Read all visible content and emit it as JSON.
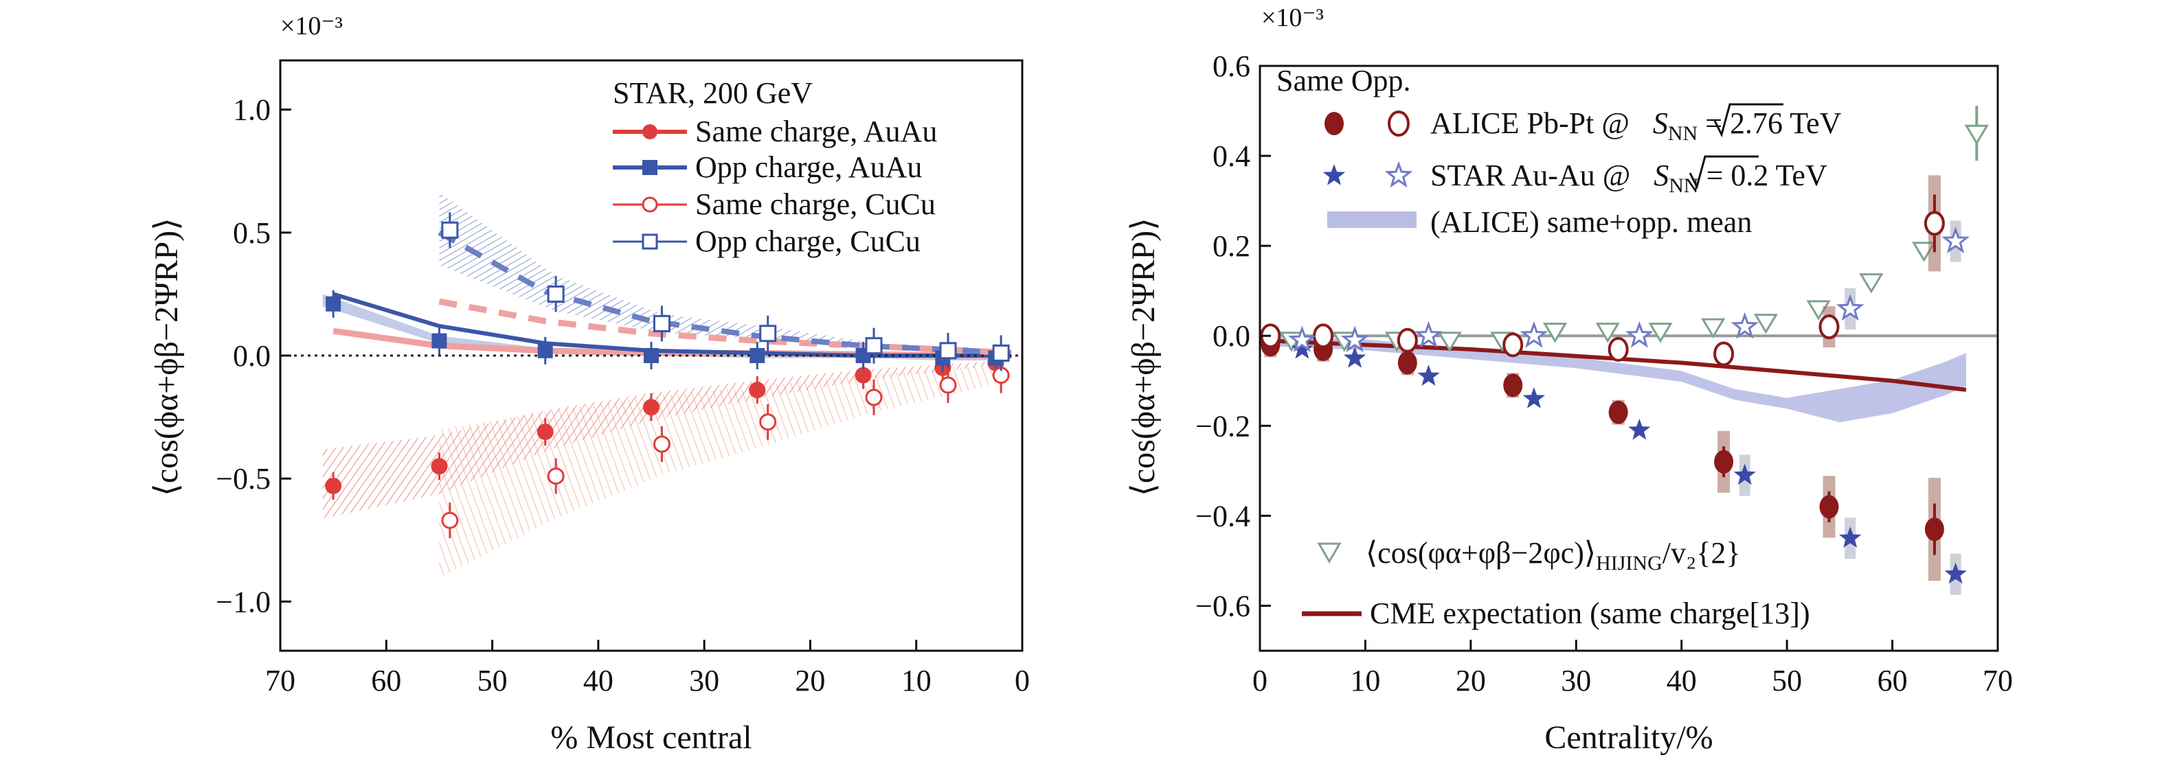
{
  "chart_data": [
    {
      "type": "scatter",
      "multiplier": "×10⁻³",
      "xlabel": "% Most central",
      "ylabel": "⟨cos(ϕα+ϕβ−2ΨRP)⟩",
      "xlim": [
        70,
        0
      ],
      "ylim": [
        -1.2,
        1.2
      ],
      "xticks": [
        70,
        60,
        50,
        40,
        30,
        20,
        10,
        0
      ],
      "yticks": [
        1.0,
        0.5,
        0.0,
        -0.5,
        -1.0
      ],
      "ytick_labels": [
        "1.0",
        "0.5",
        "0.0",
        "−0.5",
        "−1.0"
      ],
      "zero_line": "dotted",
      "legend_title": "STAR, 200 GeV",
      "legend_position": "top-right",
      "series": [
        {
          "name": "Same charge, AuAu",
          "color": "#e03c3c",
          "marker": "filled-circle",
          "line": "solid",
          "x": [
            65,
            55,
            45,
            35,
            25,
            15,
            7.5,
            2.5
          ],
          "y": [
            -0.53,
            -0.45,
            -0.31,
            -0.21,
            -0.14,
            -0.08,
            -0.05,
            -0.03
          ]
        },
        {
          "name": "Opp charge, AuAu",
          "color": "#3a56a8",
          "marker": "filled-square",
          "line": "solid",
          "x": [
            65,
            55,
            45,
            35,
            25,
            15,
            7.5,
            2.5
          ],
          "y": [
            0.21,
            0.06,
            0.02,
            0.0,
            0.0,
            0.0,
            -0.01,
            -0.01
          ]
        },
        {
          "name": "Same charge, CuCu",
          "color": "#e03c3c",
          "marker": "open-circle",
          "line": "dashed",
          "x": [
            54,
            44,
            34,
            24,
            14,
            7,
            2
          ],
          "y": [
            -0.67,
            -0.49,
            -0.36,
            -0.27,
            -0.17,
            -0.12,
            -0.08
          ]
        },
        {
          "name": "Opp charge, CuCu",
          "color": "#3a56a8",
          "marker": "open-square",
          "line": "dashed",
          "x": [
            54,
            44,
            34,
            24,
            14,
            7,
            2
          ],
          "y": [
            0.51,
            0.25,
            0.13,
            0.09,
            0.04,
            0.02,
            0.01
          ]
        }
      ]
    },
    {
      "type": "scatter",
      "multiplier": "×10⁻³",
      "xlabel": "Centrality/%",
      "ylabel": "⟨cos(ϕα+ϕβ−2ΨRP)⟩",
      "xlim": [
        0,
        70
      ],
      "ylim": [
        -0.7,
        0.6
      ],
      "xticks": [
        0,
        10,
        20,
        30,
        40,
        50,
        60,
        70
      ],
      "yticks": [
        0.6,
        0.4,
        0.2,
        0.0,
        -0.2,
        -0.4,
        -0.6
      ],
      "ytick_labels": [
        "0.6",
        "0.4",
        "0.2",
        "0.0",
        "−0.2",
        "−0.4",
        "−0.6"
      ],
      "zero_line": "solid",
      "legend_header": "Same Opp.",
      "legend_position": "top-left",
      "series": [
        {
          "name": "ALICE Pb-Pt @√SNN = 2.76 TeV",
          "legend": "ALICE Pb-Pt @",
          "legend_sqrt": "S",
          "legend_sub": "NN",
          "legend_tail": " = 2.76 TeV",
          "color": "#8b1a1a",
          "marker": "filled-circle",
          "charge": "same",
          "x": [
            1,
            6,
            14,
            24,
            34,
            44,
            54,
            64
          ],
          "y": [
            -0.02,
            -0.03,
            -0.06,
            -0.11,
            -0.17,
            -0.28,
            -0.38,
            -0.43
          ]
        },
        {
          "name": "ALICE Pb-Pt opposite",
          "color": "#8b1a1a",
          "marker": "open-circle",
          "charge": "opp",
          "x": [
            1,
            6,
            14,
            24,
            34,
            44,
            54,
            64
          ],
          "y": [
            0.0,
            0.0,
            -0.01,
            -0.02,
            -0.03,
            -0.04,
            0.02,
            0.25
          ]
        },
        {
          "name": "STAR Au-Au @√SNN = 0.2 TeV",
          "legend": "STAR Au-Au @",
          "legend_sqrt": "S",
          "legend_sub": "NN",
          "legend_tail": " = 0.2 TeV",
          "color": "#3b4aa8",
          "marker": "filled-star",
          "charge": "same",
          "x": [
            4,
            9,
            16,
            26,
            36,
            46,
            56,
            66
          ],
          "y": [
            -0.03,
            -0.05,
            -0.09,
            -0.14,
            -0.21,
            -0.31,
            -0.45,
            -0.53
          ]
        },
        {
          "name": "STAR Au-Au opposite",
          "color": "#6f7bc4",
          "marker": "open-star",
          "charge": "opp",
          "x": [
            4,
            9,
            16,
            26,
            36,
            46,
            56,
            66
          ],
          "y": [
            -0.01,
            -0.01,
            0.0,
            0.0,
            0.0,
            0.02,
            0.06,
            0.21
          ]
        },
        {
          "name": "(ALICE) same+opp. mean",
          "legend": "(ALICE) same+opp. mean",
          "color": "#b9bde6",
          "marker": "band",
          "x": [
            0,
            10,
            20,
            30,
            40,
            45,
            50,
            55,
            60,
            65,
            67
          ],
          "y": [
            -0.01,
            -0.02,
            -0.04,
            -0.06,
            -0.09,
            -0.13,
            -0.15,
            -0.16,
            -0.14,
            -0.1,
            -0.08
          ]
        },
        {
          "name": "⟨cos(φα+φβ−2φc)⟩HIJING/v2{2}",
          "legend_main": "⟨cos(φα+φβ−2φc)⟩",
          "legend_sub": "HIJING",
          "legend_tail": "/v₂{2}",
          "color": "#7fa38c",
          "marker": "open-triangle-down",
          "x": [
            3,
            8,
            13,
            18,
            23,
            28,
            33,
            38,
            43,
            48,
            53,
            58,
            63,
            68
          ],
          "y": [
            -0.01,
            -0.01,
            -0.01,
            -0.01,
            -0.01,
            0.01,
            0.01,
            0.01,
            0.02,
            0.03,
            0.06,
            0.12,
            0.19,
            0.45
          ]
        },
        {
          "name": "CME expectation (same charge[13])",
          "legend": "CME expectation (same charge[13])",
          "color": "#8b1a1a",
          "marker": "line",
          "x": [
            0,
            10,
            20,
            30,
            40,
            50,
            60,
            67
          ],
          "y": [
            -0.01,
            -0.02,
            -0.03,
            -0.045,
            -0.06,
            -0.08,
            -0.1,
            -0.12
          ]
        }
      ]
    }
  ]
}
